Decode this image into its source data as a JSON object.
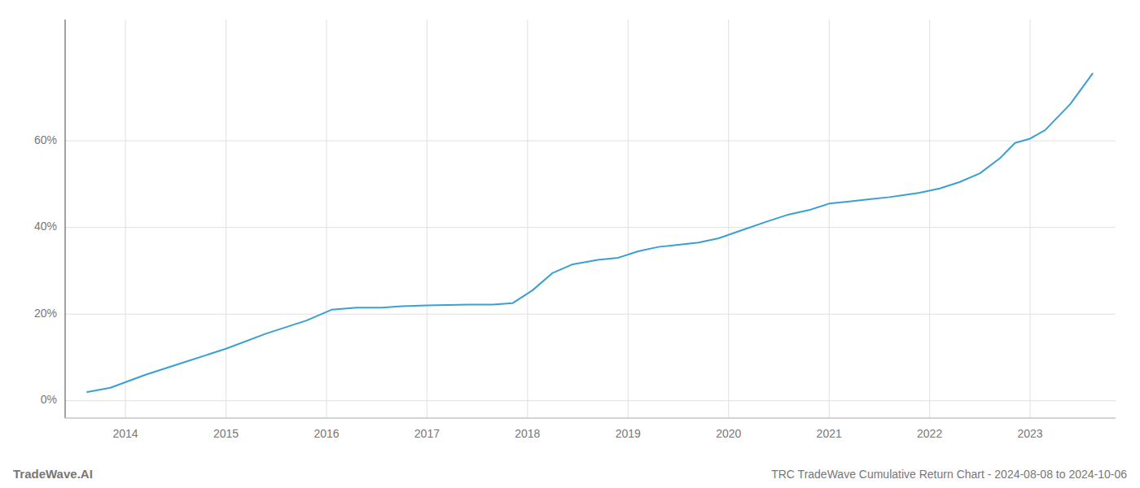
{
  "chart_data": {
    "type": "line",
    "title": "TRC TradeWave Cumulative Return Chart - 2024-08-08 to 2024-10-06",
    "annotations": [
      "TradeWave.AI"
    ],
    "color": "#3a9fd4",
    "grid": true,
    "x": [
      2013.62,
      2013.85,
      2014.2,
      2014.6,
      2015.0,
      2015.4,
      2015.8,
      2016.05,
      2016.3,
      2016.55,
      2016.75,
      2017.0,
      2017.2,
      2017.42,
      2017.65,
      2017.85,
      2018.05,
      2018.25,
      2018.45,
      2018.7,
      2018.9,
      2019.1,
      2019.3,
      2019.5,
      2019.7,
      2019.9,
      2020.15,
      2020.4,
      2020.6,
      2020.8,
      2021.0,
      2021.2,
      2021.4,
      2021.6,
      2021.75,
      2021.9,
      2022.1,
      2022.3,
      2022.5,
      2022.7,
      2022.85,
      2023.0,
      2023.15,
      2023.4,
      2023.62
    ],
    "values": [
      0.02,
      0.03,
      0.06,
      0.09,
      0.12,
      0.155,
      0.185,
      0.21,
      0.215,
      0.215,
      0.218,
      0.22,
      0.221,
      0.222,
      0.222,
      0.225,
      0.255,
      0.295,
      0.315,
      0.325,
      0.33,
      0.345,
      0.355,
      0.36,
      0.365,
      0.375,
      0.395,
      0.415,
      0.43,
      0.44,
      0.455,
      0.46,
      0.465,
      0.47,
      0.475,
      0.48,
      0.49,
      0.505,
      0.525,
      0.56,
      0.595,
      0.605,
      0.625,
      0.685,
      0.755
    ],
    "xlim": [
      2013.4,
      2023.85
    ],
    "xticks": [
      2014,
      2015,
      2016,
      2017,
      2018,
      2019,
      2020,
      2021,
      2022,
      2023
    ],
    "ylim": [
      -0.04,
      0.88
    ],
    "yticks": [
      {
        "value": 0.0,
        "label": "0%"
      },
      {
        "value": 0.2,
        "label": "20%"
      },
      {
        "value": 0.4,
        "label": "40%"
      },
      {
        "value": 0.6,
        "label": "60%"
      }
    ]
  }
}
